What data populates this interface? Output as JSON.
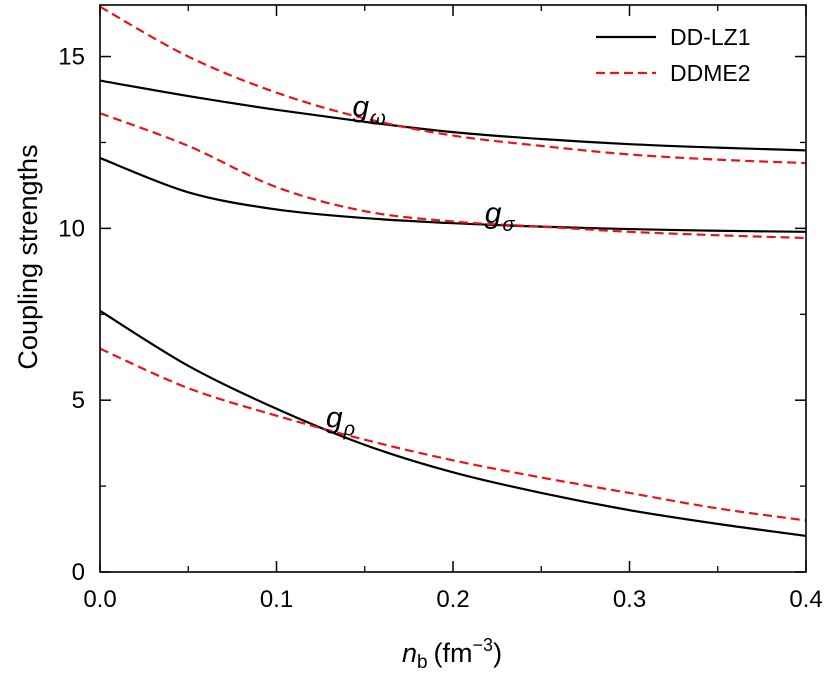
{
  "chart_data": {
    "type": "line",
    "xlabel": {
      "italic": "n",
      "sub": "b",
      "units": "(fm",
      "exp": "−3",
      "close": ")"
    },
    "ylabel": "Coupling strengths",
    "xlim": [
      0.0,
      0.4
    ],
    "ylim": [
      0,
      16.5
    ],
    "x_ticks": [
      0.0,
      0.1,
      0.2,
      0.3,
      0.4
    ],
    "x_tick_labels": [
      "0.0",
      "0.1",
      "0.2",
      "0.3",
      "0.4"
    ],
    "y_ticks": [
      0,
      5,
      10,
      15
    ],
    "y_tick_labels": [
      "0",
      "5",
      "10",
      "15"
    ],
    "legend": {
      "position": "top-right",
      "entries": [
        {
          "name": "DD-LZ1",
          "color": "#000000",
          "dash": "solid"
        },
        {
          "name": "DDME2",
          "color": "#e8141b",
          "dash": "dashed"
        }
      ]
    },
    "annotations": [
      {
        "base": "g",
        "sub": "ω",
        "x": 0.143,
        "y": 13.25
      },
      {
        "base": "g",
        "sub": "σ",
        "x": 0.218,
        "y": 10.15
      },
      {
        "base": "g",
        "sub": "ρ",
        "x": 0.128,
        "y": 4.2
      }
    ],
    "series": [
      {
        "name": "DD-LZ1",
        "label": "g_ω",
        "color": "#000000",
        "dash": "solid",
        "x": [
          0.0,
          0.05,
          0.1,
          0.15,
          0.2,
          0.25,
          0.3,
          0.35,
          0.4
        ],
        "y": [
          14.3,
          13.85,
          13.45,
          13.1,
          12.8,
          12.6,
          12.45,
          12.35,
          12.27
        ]
      },
      {
        "name": "DDME2",
        "label": "g_ω",
        "color": "#e8141b",
        "dash": "dashed",
        "x": [
          0.0,
          0.05,
          0.1,
          0.15,
          0.2,
          0.25,
          0.3,
          0.35,
          0.4
        ],
        "y": [
          16.45,
          15.0,
          13.95,
          13.2,
          12.7,
          12.4,
          12.15,
          12.0,
          11.9
        ]
      },
      {
        "name": "DD-LZ1",
        "label": "g_σ",
        "color": "#000000",
        "dash": "solid",
        "x": [
          0.0,
          0.05,
          0.1,
          0.15,
          0.2,
          0.25,
          0.3,
          0.35,
          0.4
        ],
        "y": [
          12.05,
          11.05,
          10.55,
          10.3,
          10.15,
          10.05,
          9.98,
          9.93,
          9.9
        ]
      },
      {
        "name": "DDME2",
        "label": "g_σ",
        "color": "#e8141b",
        "dash": "dashed",
        "x": [
          0.0,
          0.05,
          0.1,
          0.15,
          0.2,
          0.25,
          0.3,
          0.35,
          0.4
        ],
        "y": [
          13.35,
          12.4,
          11.2,
          10.5,
          10.2,
          10.05,
          9.9,
          9.8,
          9.72
        ]
      },
      {
        "name": "DD-LZ1",
        "label": "g_ρ",
        "color": "#000000",
        "dash": "solid",
        "x": [
          0.0,
          0.05,
          0.1,
          0.15,
          0.2,
          0.25,
          0.3,
          0.35,
          0.4
        ],
        "y": [
          7.6,
          6.0,
          4.75,
          3.7,
          2.9,
          2.3,
          1.8,
          1.4,
          1.05
        ]
      },
      {
        "name": "DDME2",
        "label": "g_ρ",
        "color": "#e8141b",
        "dash": "dashed",
        "x": [
          0.0,
          0.05,
          0.1,
          0.15,
          0.2,
          0.25,
          0.3,
          0.35,
          0.4
        ],
        "y": [
          6.5,
          5.35,
          4.55,
          3.85,
          3.25,
          2.75,
          2.3,
          1.85,
          1.5
        ]
      }
    ]
  }
}
